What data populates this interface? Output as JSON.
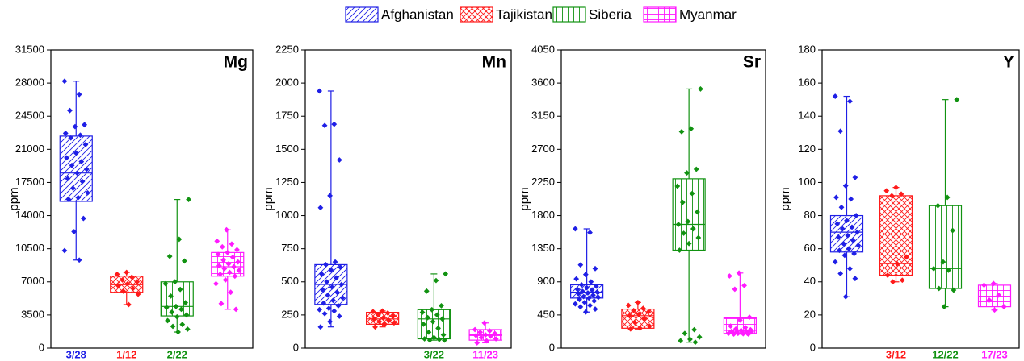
{
  "legend": {
    "items": [
      {
        "name": "Afghanistan",
        "color": "#1f1fe6",
        "pattern": "diagonal"
      },
      {
        "name": "Tajikistan",
        "color": "#ff1a1a",
        "pattern": "cross"
      },
      {
        "name": "Siberia",
        "color": "#119211",
        "pattern": "vertical"
      },
      {
        "name": "Myanmar",
        "color": "#ff1aff",
        "pattern": "grid"
      }
    ]
  },
  "chart_data": [
    {
      "type": "box",
      "title": "Mg",
      "ylabel": "ppm",
      "ylim": [
        0,
        31500
      ],
      "yticks": [
        0,
        3500,
        7000,
        10500,
        14000,
        17500,
        21000,
        24500,
        28000,
        31500
      ],
      "groups": [
        {
          "box": {
            "min": 9300,
            "q1": 15500,
            "median": 18500,
            "q3": 22400,
            "max": 28200
          },
          "points": [
            28200,
            26800,
            25100,
            23600,
            23400,
            22700,
            22500,
            22200,
            21500,
            20600,
            20100,
            19700,
            19300,
            18900,
            18500,
            17900,
            17600,
            16900,
            16400,
            15900,
            15700,
            13700,
            12300,
            10300,
            9300
          ],
          "note": "3/28"
        },
        {
          "box": {
            "min": 4600,
            "q1": 5900,
            "median": 6700,
            "q3": 7600,
            "max": 8000
          },
          "points": [
            8000,
            7800,
            7500,
            7200,
            7000,
            6800,
            6600,
            6300,
            6000,
            5700,
            4600
          ],
          "note": "1/12"
        },
        {
          "box": {
            "min": 1700,
            "q1": 3400,
            "median": 4400,
            "q3": 7000,
            "max": 15700
          },
          "points": [
            15700,
            11500,
            9700,
            9200,
            7000,
            6800,
            6200,
            5500,
            4800,
            4400,
            4300,
            4100,
            3800,
            3500,
            3300,
            2900,
            2500,
            2300,
            2000,
            1700
          ],
          "note": "2/22"
        },
        {
          "box": {
            "min": 4100,
            "q1": 7600,
            "median": 8600,
            "q3": 10100,
            "max": 12500
          },
          "points": [
            12500,
            11300,
            11000,
            10700,
            10400,
            10100,
            9900,
            9600,
            9300,
            9100,
            8900,
            8700,
            8600,
            8400,
            8200,
            8000,
            7800,
            7600,
            7200,
            6800,
            5900,
            4700,
            4100
          ],
          "note": null
        }
      ]
    },
    {
      "type": "box",
      "title": "Mn",
      "ylabel": "ppm",
      "ylim": [
        0,
        2250
      ],
      "yticks": [
        0,
        250,
        500,
        750,
        1000,
        1250,
        1500,
        1750,
        2000,
        2250
      ],
      "groups": [
        {
          "box": {
            "min": 160,
            "q1": 330,
            "median": 480,
            "q3": 630,
            "max": 1940
          },
          "points": [
            1940,
            1690,
            1680,
            1420,
            1150,
            1060,
            650,
            630,
            610,
            590,
            560,
            530,
            500,
            480,
            460,
            440,
            420,
            400,
            380,
            360,
            340,
            320,
            300,
            290,
            280,
            260,
            240,
            200,
            160
          ],
          "note": null
        },
        {
          "box": {
            "min": 160,
            "q1": 180,
            "median": 220,
            "q3": 270,
            "max": 280
          },
          "points": [
            280,
            275,
            265,
            250,
            240,
            230,
            220,
            210,
            200,
            190,
            180,
            160
          ],
          "note": null
        },
        {
          "box": {
            "min": 60,
            "q1": 70,
            "median": 220,
            "q3": 290,
            "max": 560
          },
          "points": [
            560,
            510,
            430,
            320,
            290,
            270,
            250,
            230,
            220,
            200,
            180,
            150,
            120,
            100,
            80,
            70,
            65,
            60,
            60
          ],
          "note": "3/22"
        },
        {
          "box": {
            "min": 40,
            "q1": 60,
            "median": 100,
            "q3": 140,
            "max": 190
          },
          "points": [
            190,
            140,
            130,
            120,
            110,
            100,
            95,
            90,
            80,
            70,
            55,
            40
          ],
          "note": "11/23"
        }
      ]
    },
    {
      "type": "box",
      "title": "Sr",
      "ylabel": "ppm",
      "ylim": [
        0,
        4050
      ],
      "yticks": [
        0,
        450,
        900,
        1350,
        1800,
        2250,
        2700,
        3150,
        3600,
        4050
      ],
      "groups": [
        {
          "box": {
            "min": 490,
            "q1": 680,
            "median": 760,
            "q3": 860,
            "max": 1620
          },
          "points": [
            1620,
            1570,
            1130,
            1080,
            1000,
            940,
            900,
            860,
            840,
            820,
            800,
            790,
            770,
            760,
            750,
            740,
            720,
            700,
            690,
            680,
            660,
            640,
            620,
            600,
            580,
            560,
            530,
            490
          ],
          "note": null
        },
        {
          "box": {
            "min": 260,
            "q1": 270,
            "median": 440,
            "q3": 530,
            "max": 620
          },
          "points": [
            620,
            580,
            540,
            510,
            490,
            460,
            440,
            400,
            350,
            300,
            270,
            260
          ],
          "note": null
        },
        {
          "box": {
            "min": 80,
            "q1": 1330,
            "median": 1680,
            "q3": 2300,
            "max": 3520
          },
          "points": [
            3520,
            2980,
            2940,
            2430,
            2380,
            2200,
            2100,
            1980,
            1850,
            1720,
            1680,
            1620,
            1560,
            1500,
            1420,
            1330,
            250,
            200,
            150,
            120,
            100,
            80
          ],
          "note": null
        },
        {
          "box": {
            "min": 190,
            "q1": 200,
            "median": 240,
            "q3": 410,
            "max": 1020
          },
          "points": [
            1020,
            980,
            850,
            800,
            420,
            380,
            300,
            280,
            260,
            250,
            240,
            230,
            230,
            220,
            220,
            210,
            210,
            200,
            200,
            200,
            195,
            190,
            190
          ],
          "note": null
        }
      ]
    },
    {
      "type": "box",
      "title": "Y",
      "ylabel": "ppm",
      "ylim": [
        0,
        180
      ],
      "yticks": [
        0,
        20,
        40,
        60,
        80,
        100,
        120,
        140,
        160,
        180
      ],
      "groups": [
        {
          "box": {
            "min": 31,
            "q1": 58,
            "median": 70,
            "q3": 80,
            "max": 152
          },
          "points": [
            152,
            149,
            131,
            103,
            98,
            91,
            90,
            85,
            80,
            77,
            75,
            73,
            72,
            70,
            68,
            67,
            65,
            63,
            62,
            60,
            59,
            57,
            56,
            52,
            48,
            45,
            42,
            31
          ],
          "note": null
        },
        {
          "box": {
            "min": 40,
            "q1": 44,
            "median": 51,
            "q3": 92,
            "max": 97
          },
          "points": [
            97,
            95,
            93,
            92,
            55,
            51,
            44,
            41,
            40
          ],
          "note": "3/12"
        },
        {
          "box": {
            "min": 25,
            "q1": 36,
            "median": 48,
            "q3": 86,
            "max": 150
          },
          "points": [
            150,
            91,
            86,
            71,
            52,
            48,
            47,
            36,
            35,
            25
          ],
          "note": "12/22"
        },
        {
          "box": {
            "min": 23,
            "q1": 25,
            "median": 31,
            "q3": 38,
            "max": 39
          },
          "points": [
            39,
            38,
            32,
            29,
            25,
            23
          ],
          "note": "17/23"
        }
      ]
    }
  ]
}
